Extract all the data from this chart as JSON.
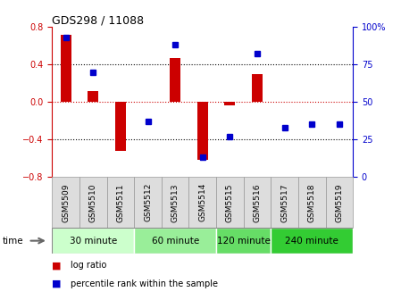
{
  "title": "GDS298 / 11088",
  "samples": [
    "GSM5509",
    "GSM5510",
    "GSM5511",
    "GSM5512",
    "GSM5513",
    "GSM5514",
    "GSM5515",
    "GSM5516",
    "GSM5517",
    "GSM5518",
    "GSM5519"
  ],
  "log_ratio": [
    0.72,
    0.12,
    -0.52,
    0.0,
    0.47,
    -0.62,
    -0.04,
    0.3,
    0.0,
    0.0,
    0.0
  ],
  "percentile": [
    93,
    70,
    null,
    37,
    88,
    13,
    27,
    82,
    33,
    35,
    35
  ],
  "ylim_left": [
    -0.8,
    0.8
  ],
  "ylim_right": [
    0,
    100
  ],
  "yticks_left": [
    -0.8,
    -0.4,
    0.0,
    0.4,
    0.8
  ],
  "yticks_right": [
    0,
    25,
    50,
    75,
    100
  ],
  "ytick_labels_right": [
    "0",
    "25",
    "50",
    "75",
    "100%"
  ],
  "dotted_lines_black": [
    -0.4,
    0.4
  ],
  "dotted_line_red": 0.0,
  "bar_color": "#cc0000",
  "dot_color": "#0000cc",
  "time_groups": [
    {
      "label": "30 minute",
      "start": 0,
      "end": 3,
      "color": "#ccffcc"
    },
    {
      "label": "60 minute",
      "start": 3,
      "end": 6,
      "color": "#99ee99"
    },
    {
      "label": "120 minute",
      "start": 6,
      "end": 8,
      "color": "#66dd66"
    },
    {
      "label": "240 minute",
      "start": 8,
      "end": 11,
      "color": "#33cc33"
    }
  ],
  "legend_bar_label": "log ratio",
  "legend_dot_label": "percentile rank within the sample",
  "time_label": "time",
  "cell_bg_color": "#dddddd",
  "cell_edge_color": "#999999"
}
